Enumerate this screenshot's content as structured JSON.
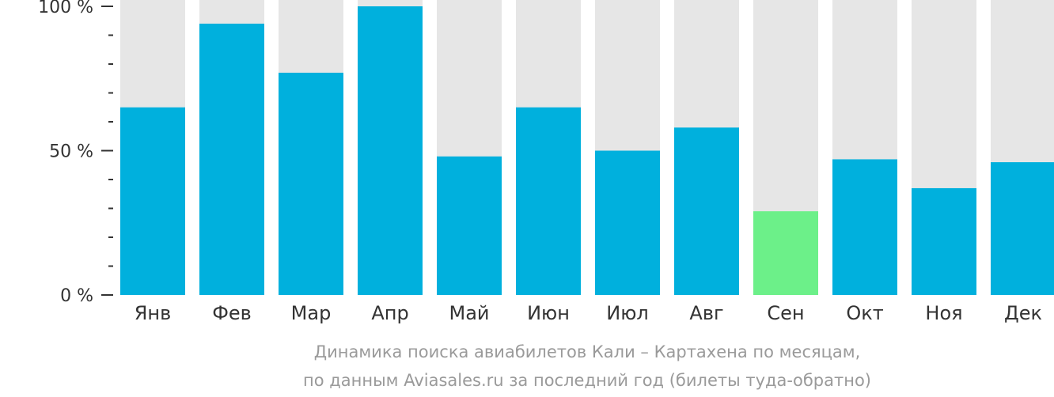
{
  "chart_data": {
    "type": "bar",
    "categories": [
      "Янв",
      "Фев",
      "Мар",
      "Апр",
      "Май",
      "Июн",
      "Июл",
      "Авг",
      "Сен",
      "Окт",
      "Ноя",
      "Дек"
    ],
    "values": [
      65,
      94,
      77,
      100,
      48,
      65,
      50,
      58,
      29,
      47,
      37,
      46
    ],
    "highlight_index": 8,
    "ylim": [
      0,
      100
    ],
    "yticks": [
      {
        "value": 0,
        "label": "0 %"
      },
      {
        "value": 50,
        "label": "50 %"
      },
      {
        "value": 100,
        "label": "100 %"
      }
    ],
    "minor_tick_step": 10,
    "colors": {
      "bar": "#00b0dd",
      "highlight": "#6cf089",
      "background_bar": "#e6e6e6",
      "axis": "#333333"
    },
    "caption": [
      "Динамика поиска авиабилетов Кали – Картахена по месяцам,",
      "по данным Aviasales.ru за последний год (билеты туда-обратно)"
    ]
  }
}
